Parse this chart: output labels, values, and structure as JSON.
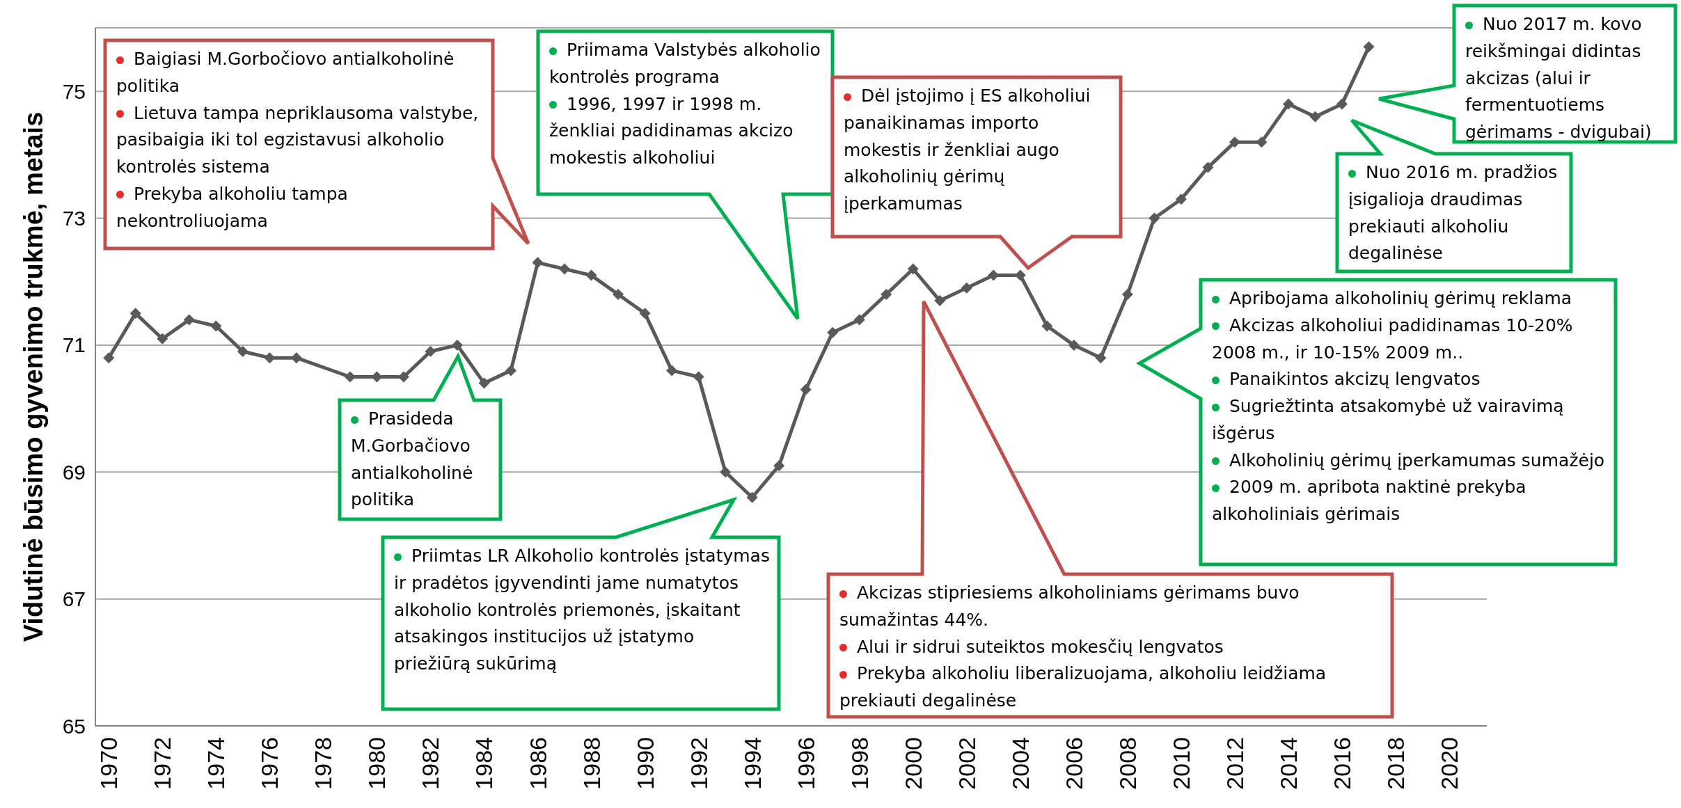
{
  "chart_data": {
    "type": "line",
    "ylabel": "Vidutinė būsimo gyvenimo trukmė, metais",
    "x": [
      1970,
      1971,
      1972,
      1973,
      1974,
      1975,
      1976,
      1977,
      1978,
      1979,
      1980,
      1981,
      1982,
      1983,
      1984,
      1985,
      1986,
      1987,
      1988,
      1989,
      1990,
      1991,
      1992,
      1993,
      1994,
      1995,
      1996,
      1997,
      1998,
      1999,
      2000,
      2001,
      2002,
      2003,
      2004,
      2005,
      2006,
      2007,
      2008,
      2009,
      2010,
      2011,
      2012,
      2013,
      2014,
      2015,
      2016,
      2017
    ],
    "values": [
      70.8,
      71.5,
      71.1,
      71.4,
      71.3,
      70.9,
      70.8,
      70.8,
      null,
      70.5,
      70.5,
      70.5,
      70.9,
      71.0,
      70.4,
      70.6,
      72.3,
      72.2,
      72.1,
      71.8,
      71.5,
      70.6,
      70.5,
      69.0,
      68.6,
      69.1,
      70.3,
      71.2,
      71.4,
      71.8,
      72.2,
      71.7,
      71.9,
      72.1,
      72.1,
      71.3,
      71.0,
      70.8,
      71.8,
      73.0,
      73.3,
      73.8,
      74.2,
      74.2,
      74.8,
      74.6,
      74.8,
      75.7
    ],
    "color": "#595959",
    "xlim": [
      1969.5,
      2021.4
    ],
    "xticks": [
      1970,
      1972,
      1974,
      1976,
      1978,
      1980,
      1982,
      1984,
      1986,
      1988,
      1990,
      1992,
      1994,
      1996,
      1998,
      2000,
      2002,
      2004,
      2006,
      2008,
      2010,
      2012,
      2014,
      2016,
      2018,
      2020
    ],
    "ylim": [
      65,
      76
    ],
    "yticks": [
      65,
      67,
      69,
      71,
      73,
      75
    ],
    "grid": "y",
    "marker": "diamond",
    "line_style": "solid",
    "annotations": [
      "Baigiasi M.Gorbočiovo antialkoholinė politika\nLietuva tampa nepriklausoma valstybe, pasibaigia iki tol egzistavusi alkoholio kontrolės sistema\nPrekyba alkoholiu tampa nekontroliuojama",
      "Prasideda M.Gorbačiovo antialkoholinė politika",
      "Priimama Valstybės alkoholio kontrolės programa\n1996, 1997 ir 1998 m. ženkliai padidinamas akcizo mokestis alkoholiui",
      "Priimtas LR Alkoholio kontrolės įstatymas ir pradėtos įgyvendinti jame numatytos alkoholio kontrolės priemonės, įskaitant atsakingos institucijos už įstatymo priežiūrą sukūrimą",
      "Dėl įstojimo į ES alkoholiui panaikinamas importo mokestis ir ženkliai augo alkoholinių gėrimų įperkamumas",
      "Akcizas stipriesiems alkoholiniams gėrimams buvo sumažintas 44%.\nAlui ir sidrui suteiktos mokesčių lengvatos\nPrekyba alkoholiu liberalizuojama, alkoholiu leidžiama prekiauti degalinėse",
      "Nuo 2017 m. kovo reikšmingai didintas akcizas (alui ir fermentuotiems gėrimams - dvigubai)",
      "Nuo 2016 m. pradžios įsigalioja draudimas prekiauti alkoholiu degalinėse",
      "Apribojama alkoholinių gėrimų reklama\nAkcizas alkoholiui padidinamas 10-20% 2008 m., ir 10-15% 2009 m..\nPanaikintos akcizų lengvatos\nSugriežtinta atsakomybė už vairavimą išgėrus\nAlkoholinių gėrimų įperkamumas sumažėjo\n2009 m. apribota naktinė prekyba alkoholiniais gėrimais"
    ]
  }
}
